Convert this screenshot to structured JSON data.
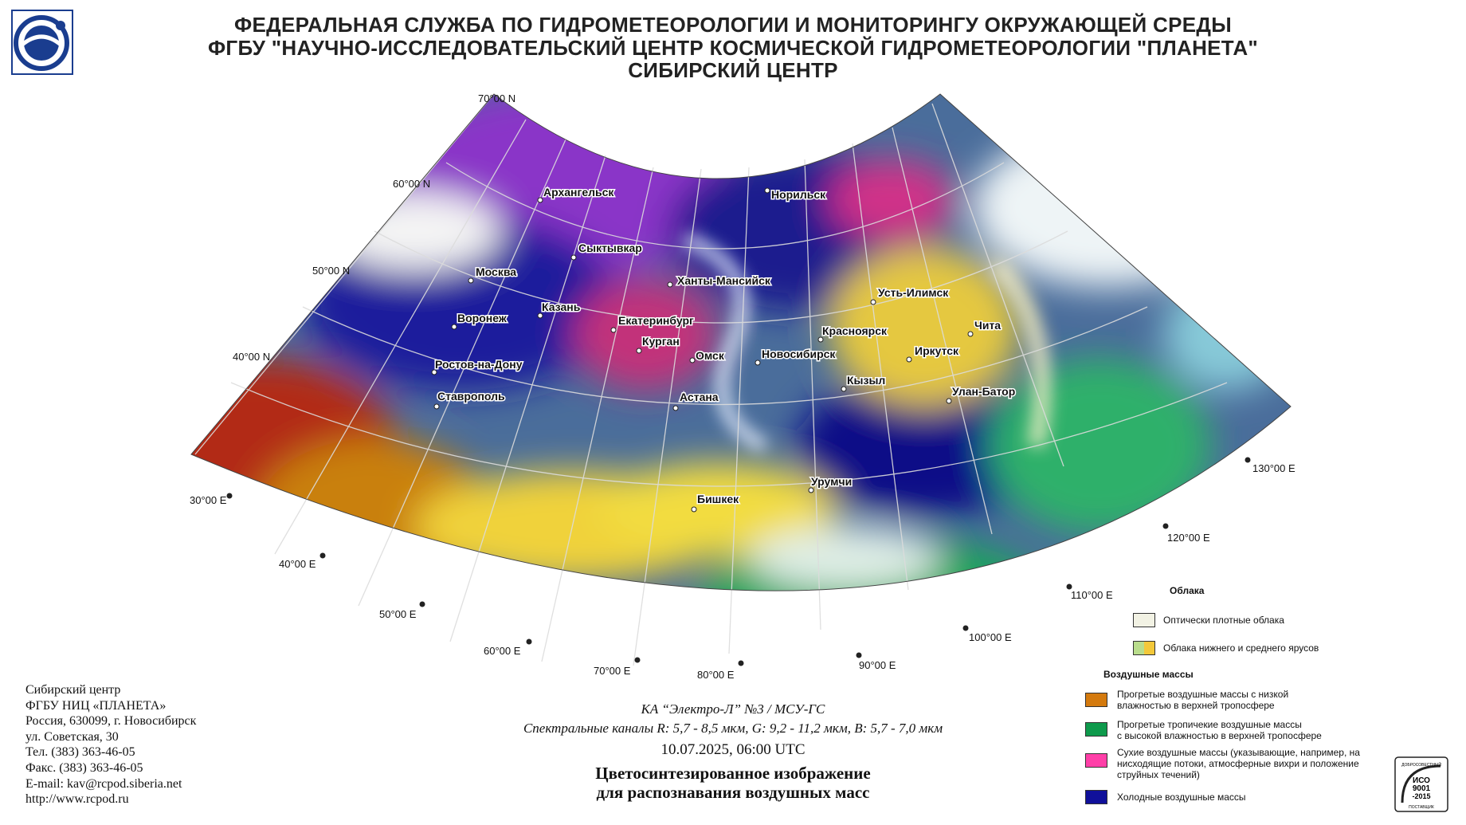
{
  "header": {
    "line1": "ФЕДЕРАЛЬНАЯ СЛУЖБА ПО ГИДРОМЕТЕОРОЛОГИИ И МОНИТОРИНГУ ОКРУЖАЮЩЕЙ СРЕДЫ",
    "line2": "ФГБУ \"НАУЧНО-ИССЛЕДОВАТЕЛЬСКИЙ ЦЕНТР КОСМИЧЕСКОЙ ГИДРОМЕТЕОРОЛОГИИ \"ПЛАНЕТА\"",
    "line3": "СИБИРСКИЙ ЦЕНТР"
  },
  "map": {
    "lat_labels": [
      "70°00 N",
      "60°00 N",
      "50°00 N",
      "40°00 N"
    ],
    "lon_labels": [
      "30°00 E",
      "40°00 E",
      "50°00 E",
      "60°00 E",
      "70°00 E",
      "80°00 E",
      "90°00 E",
      "100°00 E",
      "110°00 E",
      "120°00 E",
      "130°00 E"
    ],
    "cities": [
      "Архангельск",
      "Норильск",
      "Сыктывкар",
      "Москва",
      "Ханты-Мансийск",
      "Усть-Илимск",
      "Казань",
      "Воронеж",
      "Екатеринбург",
      "Красноярск",
      "Чита",
      "Курган",
      "Иркутск",
      "Омск",
      "Новосибирск",
      "Ростов-на-Дону",
      "Кызыл",
      "Улан-Батор",
      "Ставрополь",
      "Астана",
      "Урумчи",
      "Бишкек"
    ]
  },
  "contact": {
    "lines": [
      "Сибирский центр",
      "ФГБУ НИЦ «ПЛАНЕТА»",
      "Россия, 630099, г. Новосибирск",
      "ул. Советская, 30",
      "Тел. (383) 363-46-05",
      "Факс. (383) 363-46-05",
      "E-mail: kav@rcpod.siberia.net",
      "http://www.rcpod.ru"
    ]
  },
  "caption": {
    "satellite": "КА “Электро-Л” №3 / МСУ-ГС",
    "channels": "Спектральные каналы R: 5,7 - 8,5 мкм, G: 9,2 - 11,2 мкм, B: 5,7 - 7,0 мкм",
    "datetime": "10.07.2025, 06:00 UTC",
    "title1": "Цветосинтезированное изображение",
    "title2": "для распознавания воздушных масс"
  },
  "legend": {
    "clouds_title": "Облака",
    "clouds": [
      {
        "label": "Оптически плотные облака",
        "color": "#f2f2e4"
      },
      {
        "label": "Облака нижнего и среднего ярусов",
        "color": "#b9dd8c",
        "color2": "#f3c83a"
      }
    ],
    "air_title": "Воздушные массы",
    "air": [
      {
        "label1": "Прогретые воздушные массы с низкой",
        "label2": "влажностью в верхней тропосфере",
        "label3": "",
        "color": "#d47a0e"
      },
      {
        "label1": "Прогретые тропичекие воздушные массы",
        "label2": "с высокой влажностью в верхней тропосфере",
        "label3": "",
        "color": "#0e9a4c"
      },
      {
        "label1": "Сухие воздушные массы (указывающие, например, на",
        "label2": "нисходящие потоки, атмосферные вихри и положение",
        "label3": "струйных течений)",
        "color": "#ff3fa8"
      },
      {
        "label1": "Холодные воздушные массы",
        "label2": "",
        "label3": "",
        "color": "#10109a"
      }
    ]
  },
  "iso_badge": {
    "line1": "ДОБРОСОВЕСТНЫЙ",
    "line2": "ИСО",
    "line3": "9001",
    "line4": "-2015",
    "line5": "ПОСТАВЩИК"
  },
  "colors": {
    "cold_air": "#10109a",
    "dry_air": "#ff3fa8",
    "warm_dry": "#d47a0e",
    "warm_moist": "#0e9a4c",
    "dense_clouds": "#f2f2e4",
    "low_mid_clouds": "#f3c83a"
  }
}
